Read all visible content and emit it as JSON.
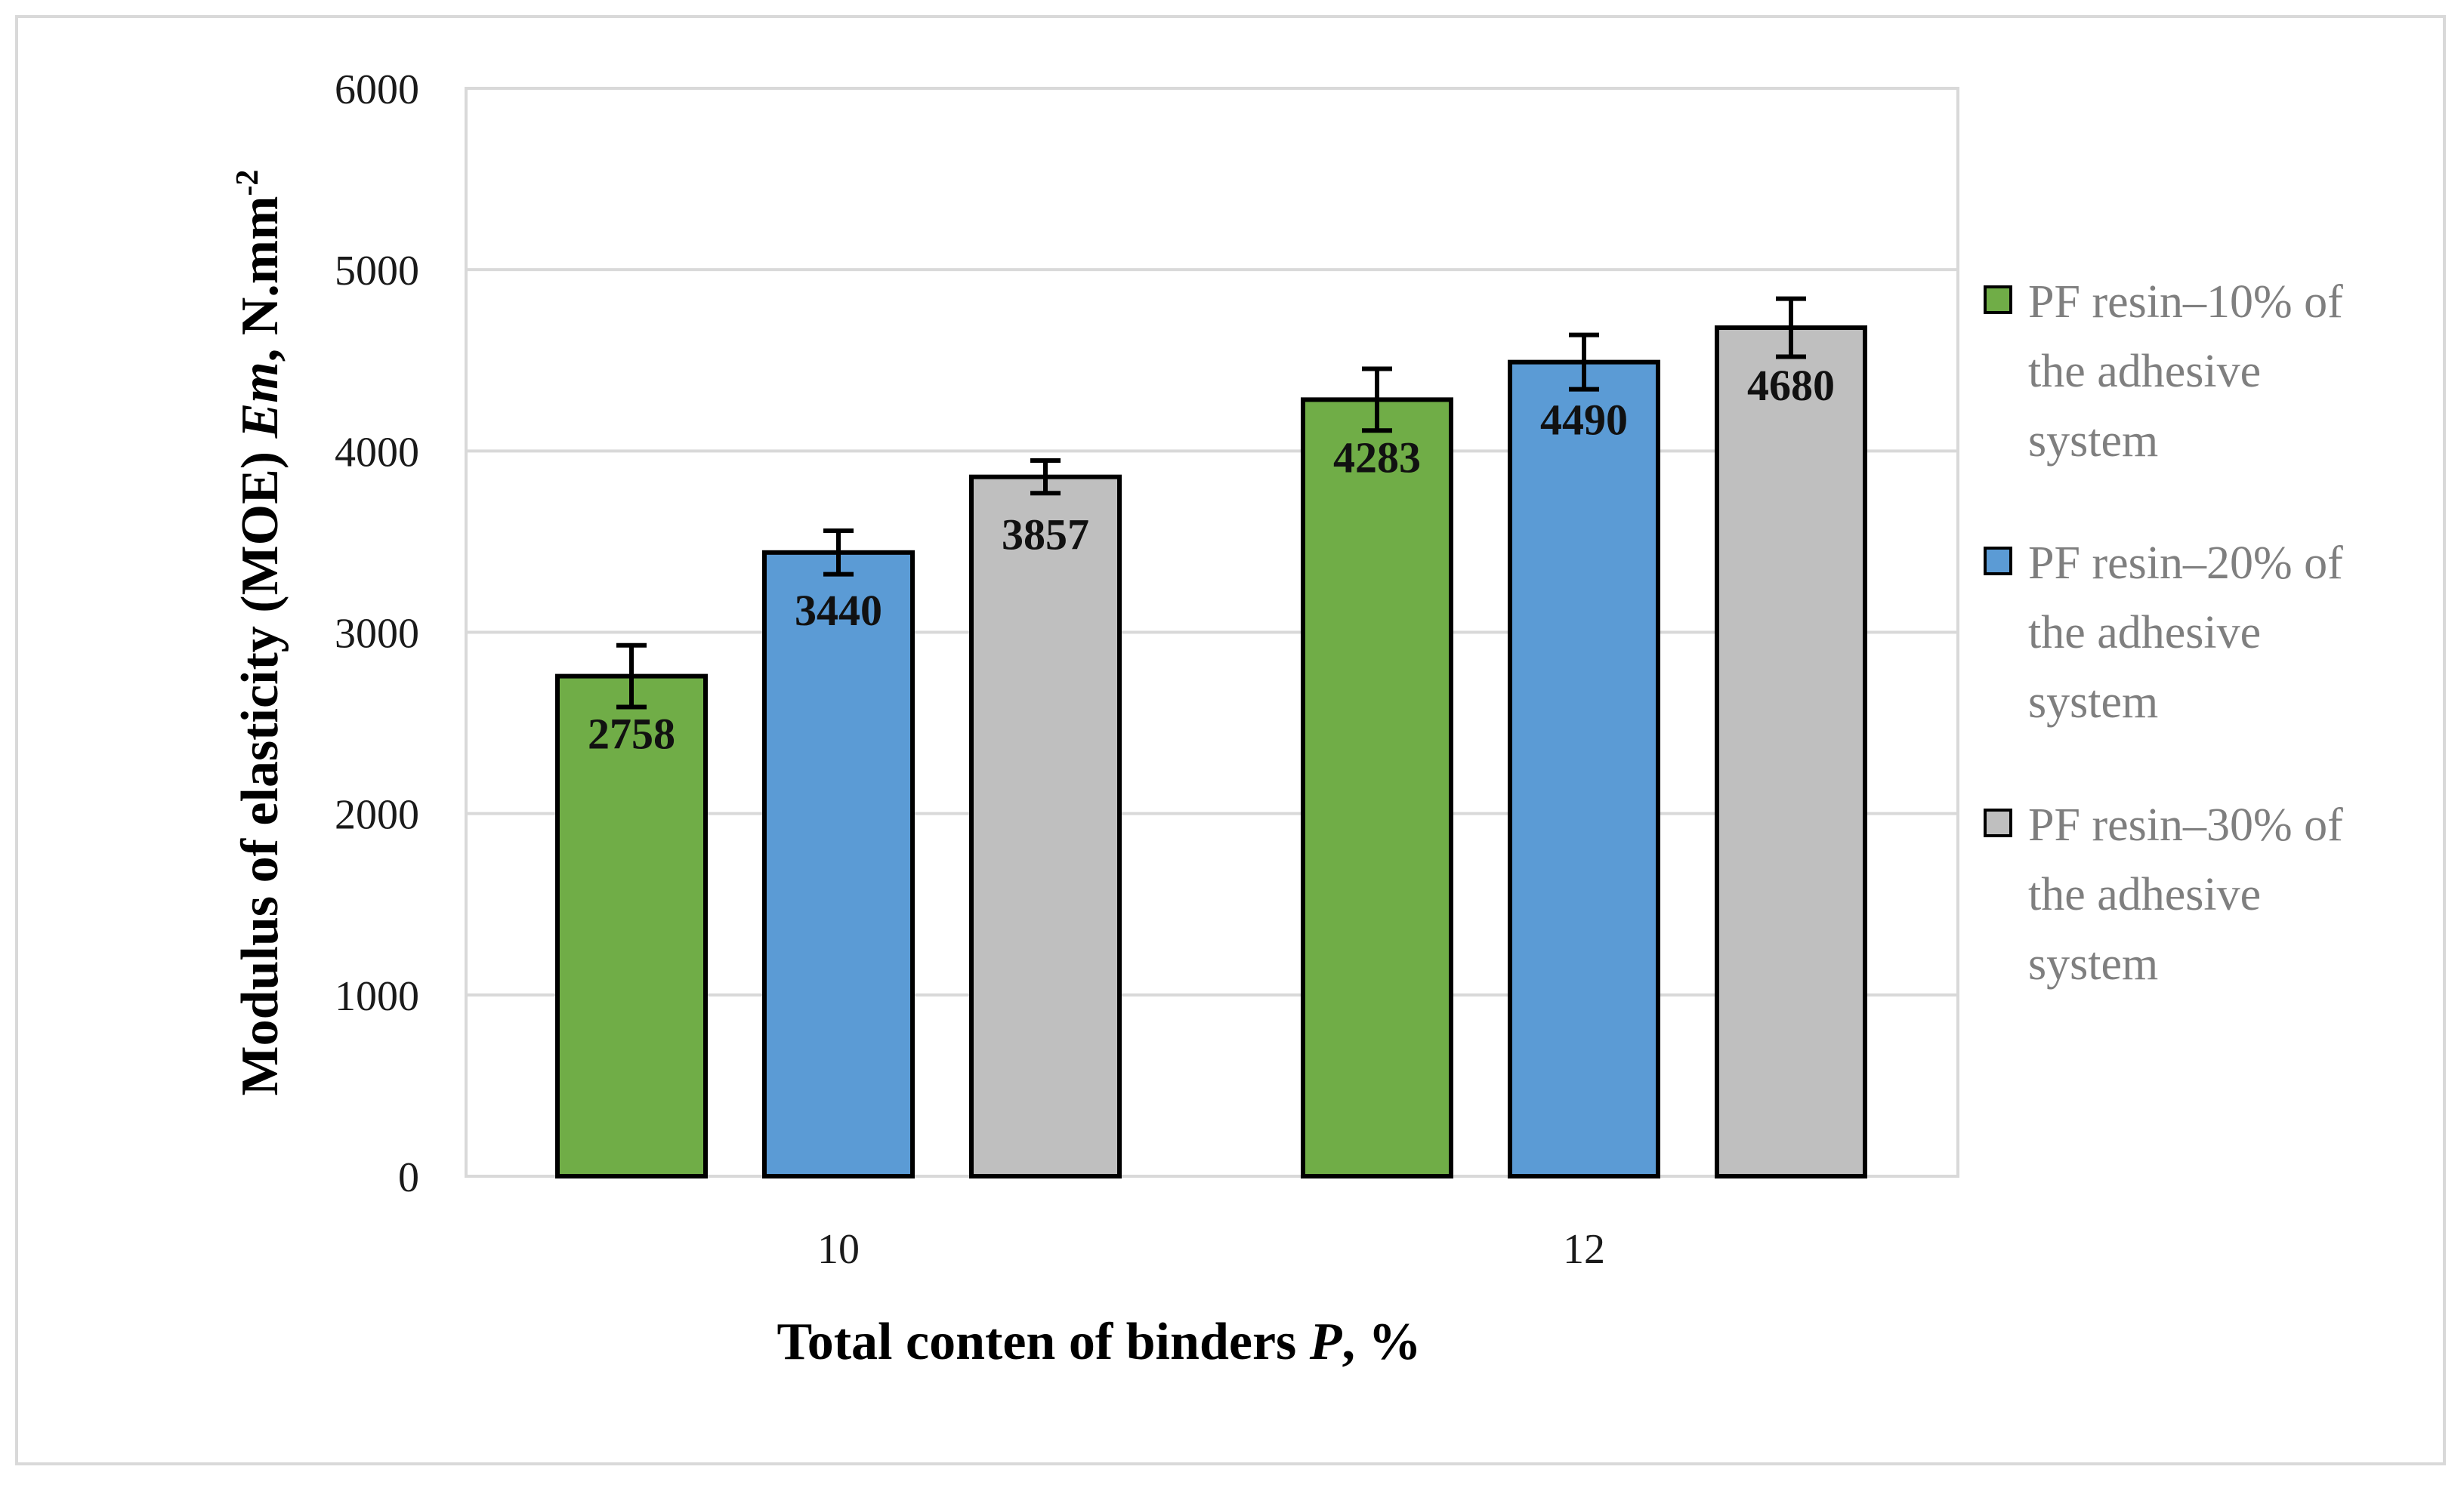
{
  "chart_data": {
    "type": "bar",
    "categories": [
      "10",
      "12"
    ],
    "series": [
      {
        "name": "PF resin–10% of the adhesive system",
        "values": [
          2758,
          4283
        ],
        "errors": [
          170,
          170
        ],
        "color": "#70ad47"
      },
      {
        "name": "PF resin–20% of the adhesive system",
        "values": [
          3440,
          4490
        ],
        "errors": [
          120,
          150
        ],
        "color": "#5b9bd5"
      },
      {
        "name": "PF resin–30% of the adhesive system",
        "values": [
          3857,
          4680
        ],
        "errors": [
          90,
          160
        ],
        "color": "#bfbfbf"
      }
    ],
    "legend_lines": [
      [
        "PF resin–10% of",
        "the adhesive",
        "system"
      ],
      [
        "PF resin–20% of",
        "the adhesive",
        "system"
      ],
      [
        "PF resin–30% of",
        "the adhesive",
        "system"
      ]
    ],
    "xlabel": {
      "main": "Total conten of binders ",
      "italic": "P",
      "suffix": ", %"
    },
    "ylabel": {
      "main": "Modulus of elasticity (MOE)  ",
      "italic": "Em",
      "suffix": ", N.mm",
      "sup": "-2"
    },
    "ylim": [
      0,
      6000
    ],
    "yticks": [
      0,
      1000,
      2000,
      3000,
      4000,
      5000,
      6000
    ],
    "grid": true,
    "legend_position": "right"
  }
}
